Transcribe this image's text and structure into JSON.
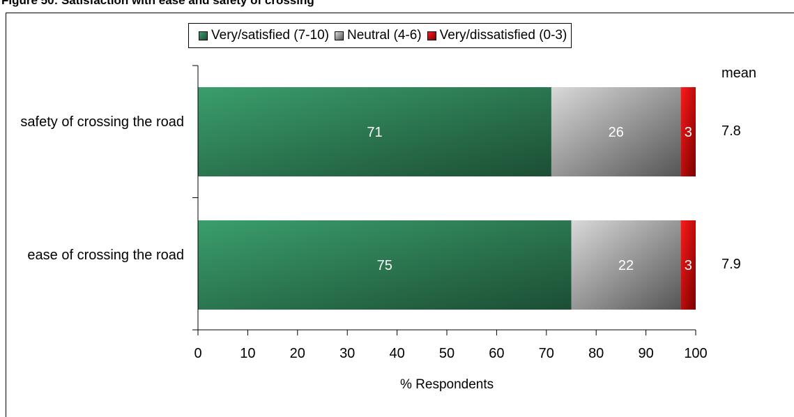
{
  "figure_title": "Figure 50: Satisfaction with ease and safety of crossing",
  "chart_data": {
    "type": "bar",
    "orientation": "horizontal",
    "stacked": true,
    "categories": [
      "safety of crossing the road",
      "ease of crossing the road"
    ],
    "series": [
      {
        "name": "Very/satisfied (7-10)",
        "values": [
          71,
          75
        ],
        "color": "#2a7a52"
      },
      {
        "name": "Neutral (4-6)",
        "values": [
          26,
          22
        ],
        "color": "#9a9a9a"
      },
      {
        "name": "Very/dissatisfied (0-3)",
        "values": [
          3,
          3
        ],
        "color": "#e00000"
      }
    ],
    "xlabel": "% Respondents",
    "xlim": [
      0,
      100
    ],
    "xticks": [
      0,
      10,
      20,
      30,
      40,
      50,
      60,
      70,
      80,
      90,
      100
    ],
    "mean_header": "mean",
    "means": [
      "7.8",
      "7.9"
    ],
    "legend_position": "top",
    "grid": false
  }
}
